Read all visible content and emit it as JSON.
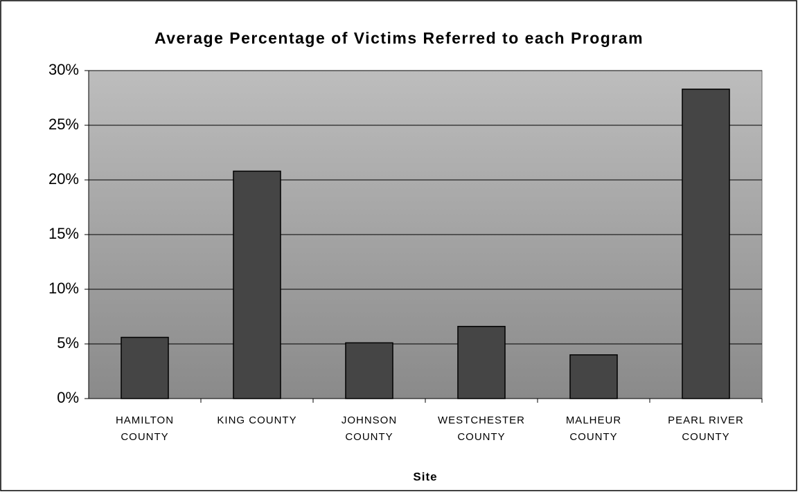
{
  "chart_data": {
    "type": "bar",
    "title": "Average Percentage of Victims Referred to each Program",
    "x_label": "Site",
    "categories": [
      "HAMILTON COUNTY",
      "KING COUNTY",
      "JOHNSON COUNTY",
      "WESTCHESTER COUNTY",
      "MALHEUR COUNTY",
      "PEARL RIVER COUNTY"
    ],
    "values": [
      5.6,
      20.8,
      5.1,
      6.6,
      4.0,
      28.3
    ],
    "color": "#454545",
    "ylim": [
      0,
      30
    ],
    "yticks": [
      {
        "value": 0,
        "label": "0%"
      },
      {
        "value": 5,
        "label": "5%"
      },
      {
        "value": 10,
        "label": "10%"
      },
      {
        "value": 15,
        "label": "15%"
      },
      {
        "value": 20,
        "label": "20%"
      },
      {
        "value": 25,
        "label": "25%"
      },
      {
        "value": 30,
        "label": "30%"
      }
    ],
    "grid": true
  }
}
